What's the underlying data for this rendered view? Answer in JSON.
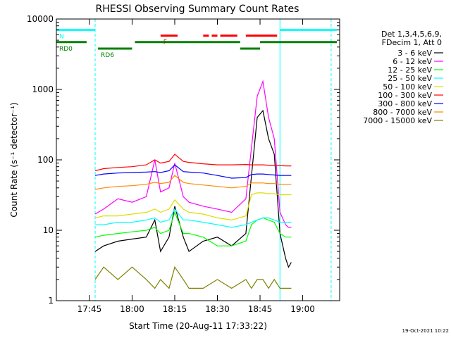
{
  "chart_data": {
    "type": "line",
    "title": "RHESSI Observing Summary Count Rates",
    "xlabel": "Start Time (20-Aug-11 17:33:22)",
    "ylabel": "Count Rate (s⁻¹ detector⁻¹)",
    "x_unit": "minutes",
    "xlim": [
      "17:33:22",
      "19:13:00"
    ],
    "ylim": [
      1,
      10000
    ],
    "yscale": "log",
    "grid": false,
    "legend_position": "right",
    "x_ticks": [
      "17:45",
      "18:00",
      "18:15",
      "18:30",
      "18:45",
      "19:00"
    ],
    "y_ticks": [
      "1",
      "10",
      "100",
      "1000",
      "10000"
    ],
    "legend_header": [
      "Det 1,3,4,5,6,9,",
      "FDecim 1, Att 0"
    ],
    "series": [
      {
        "name": "3 - 6 keV",
        "color": "#000000",
        "x": [
          "17:47",
          "17:50",
          "17:55",
          "18:00",
          "18:05",
          "18:08",
          "18:10",
          "18:13",
          "18:15",
          "18:18",
          "18:20",
          "18:25",
          "18:30",
          "18:35",
          "18:40",
          "18:42",
          "18:44",
          "18:46",
          "18:48",
          "18:50",
          "18:52",
          "18:54",
          "18:55",
          "18:56"
        ],
        "y": [
          5,
          6,
          7,
          7.5,
          8,
          14,
          5,
          8,
          22,
          8,
          5,
          7,
          8,
          6,
          9,
          60,
          400,
          500,
          200,
          120,
          9,
          4,
          3,
          3.5
        ]
      },
      {
        "name": "6 - 12 keV",
        "color": "#ff00ff",
        "x": [
          "17:47",
          "17:50",
          "17:55",
          "18:00",
          "18:05",
          "18:08",
          "18:10",
          "18:13",
          "18:15",
          "18:18",
          "18:20",
          "18:25",
          "18:30",
          "18:35",
          "18:40",
          "18:42",
          "18:44",
          "18:46",
          "18:48",
          "18:50",
          "18:52",
          "18:54",
          "18:55",
          "18:56"
        ],
        "y": [
          17,
          20,
          28,
          25,
          30,
          100,
          35,
          40,
          90,
          30,
          25,
          22,
          20,
          18,
          28,
          150,
          800,
          1300,
          400,
          200,
          18,
          12,
          11,
          11
        ]
      },
      {
        "name": "12 - 25 keV",
        "color": "#00ff00",
        "x": [
          "17:47",
          "17:50",
          "17:55",
          "18:00",
          "18:05",
          "18:08",
          "18:10",
          "18:13",
          "18:15",
          "18:18",
          "18:20",
          "18:25",
          "18:30",
          "18:35",
          "18:40",
          "18:42",
          "18:44",
          "18:46",
          "18:48",
          "18:50",
          "18:52",
          "18:54",
          "18:55",
          "18:56"
        ],
        "y": [
          8,
          8.5,
          9,
          9.5,
          10,
          11,
          9,
          10,
          18,
          9,
          9,
          8,
          6,
          6,
          7,
          12,
          14,
          15,
          14,
          13,
          9,
          8,
          8,
          8
        ]
      },
      {
        "name": "25 - 50 keV",
        "color": "#00ffff",
        "x": [
          "17:47",
          "17:50",
          "17:55",
          "18:00",
          "18:05",
          "18:08",
          "18:10",
          "18:13",
          "18:15",
          "18:18",
          "18:20",
          "18:25",
          "18:30",
          "18:35",
          "18:40",
          "18:42",
          "18:44",
          "18:46",
          "18:48",
          "18:50",
          "18:52",
          "18:54",
          "18:55",
          "18:56"
        ],
        "y": [
          12,
          12,
          13,
          13,
          14,
          15,
          13,
          14,
          20,
          14,
          14,
          13,
          12,
          11,
          12,
          13,
          14,
          15,
          15,
          14,
          13,
          13,
          13,
          13
        ]
      },
      {
        "name": "50 - 100 keV",
        "color": "#dddd00",
        "x": [
          "17:47",
          "17:50",
          "17:55",
          "18:00",
          "18:05",
          "18:08",
          "18:10",
          "18:13",
          "18:15",
          "18:18",
          "18:20",
          "18:25",
          "18:30",
          "18:35",
          "18:40",
          "18:42",
          "18:44",
          "18:46",
          "18:48",
          "18:50",
          "18:52",
          "18:54",
          "18:55",
          "18:56"
        ],
        "y": [
          15,
          16,
          16,
          17,
          18,
          20,
          18,
          20,
          27,
          20,
          18,
          17,
          15,
          14,
          16,
          32,
          34,
          34,
          33,
          33,
          32,
          32,
          32,
          32
        ]
      },
      {
        "name": "100 - 300 keV",
        "color": "#ff0000",
        "x": [
          "17:47",
          "17:50",
          "17:55",
          "18:00",
          "18:05",
          "18:08",
          "18:10",
          "18:13",
          "18:15",
          "18:18",
          "18:20",
          "18:25",
          "18:30",
          "18:35",
          "18:40",
          "18:42",
          "18:44",
          "18:46",
          "18:48",
          "18:50",
          "18:52",
          "18:54",
          "18:55",
          "18:56"
        ],
        "y": [
          70,
          75,
          78,
          80,
          85,
          100,
          90,
          95,
          120,
          95,
          92,
          88,
          85,
          85,
          86,
          85,
          85,
          85,
          84,
          84,
          83,
          82,
          82,
          82
        ]
      },
      {
        "name": "300 - 800 keV",
        "color": "#0000ff",
        "x": [
          "17:47",
          "17:50",
          "17:55",
          "18:00",
          "18:05",
          "18:08",
          "18:10",
          "18:13",
          "18:15",
          "18:18",
          "18:20",
          "18:25",
          "18:30",
          "18:35",
          "18:40",
          "18:42",
          "18:44",
          "18:46",
          "18:48",
          "18:50",
          "18:52",
          "18:54",
          "18:55",
          "18:56"
        ],
        "y": [
          60,
          63,
          65,
          66,
          67,
          68,
          66,
          70,
          85,
          68,
          67,
          65,
          60,
          55,
          56,
          62,
          63,
          63,
          62,
          61,
          60,
          60,
          60,
          60
        ]
      },
      {
        "name": "800 - 7000 keV",
        "color": "#ff8800",
        "x": [
          "17:47",
          "17:50",
          "17:55",
          "18:00",
          "18:05",
          "18:08",
          "18:10",
          "18:13",
          "18:15",
          "18:18",
          "18:20",
          "18:25",
          "18:30",
          "18:35",
          "18:40",
          "18:42",
          "18:44",
          "18:46",
          "18:48",
          "18:50",
          "18:52",
          "18:54",
          "18:55",
          "18:56"
        ],
        "y": [
          38,
          40,
          42,
          43,
          45,
          48,
          46,
          48,
          60,
          48,
          46,
          44,
          42,
          40,
          42,
          47,
          47,
          47,
          46,
          46,
          45,
          45,
          45,
          45
        ]
      },
      {
        "name": "7000 - 15000 keV",
        "color": "#808000",
        "x": [
          "17:47",
          "17:50",
          "17:55",
          "18:00",
          "18:05",
          "18:08",
          "18:10",
          "18:13",
          "18:15",
          "18:18",
          "18:20",
          "18:25",
          "18:30",
          "18:35",
          "18:40",
          "18:42",
          "18:44",
          "18:46",
          "18:48",
          "18:50",
          "18:52",
          "18:54",
          "18:55",
          "18:56"
        ],
        "y": [
          2,
          3,
          2,
          3,
          2,
          1.5,
          2,
          1.5,
          3,
          2,
          1.5,
          1.5,
          2,
          1.5,
          2,
          1.5,
          2,
          2,
          1.5,
          2,
          1.5,
          1.5,
          1.5,
          1.5
        ]
      }
    ],
    "flag_bars": [
      {
        "label": "N",
        "color": "#00ffff",
        "level": 7000,
        "segments": [
          [
            "17:33:22",
            "17:47"
          ],
          [
            "18:52",
            "19:12"
          ]
        ]
      },
      {
        "label": "F",
        "color": "#ff0000",
        "level": 5800,
        "segments": [
          [
            "18:10",
            "18:16"
          ],
          [
            "18:25",
            "18:27"
          ],
          [
            "18:28",
            "18:30"
          ],
          [
            "18:31",
            "18:37"
          ],
          [
            "18:40",
            "18:51"
          ]
        ]
      },
      {
        "label": "RD0",
        "color": "#008000",
        "level": 4700,
        "segments": [
          [
            "17:33:22",
            "17:44"
          ],
          [
            "18:01",
            "18:38"
          ],
          [
            "18:45",
            "19:12"
          ]
        ]
      },
      {
        "label": "RD6",
        "color": "#008000",
        "level": 3800,
        "segments": [
          [
            "17:48",
            "18:00"
          ],
          [
            "18:38",
            "18:45"
          ]
        ]
      }
    ],
    "vertical_lines": [
      {
        "time": "17:33:22",
        "color": "#00ffff",
        "style": "solid"
      },
      {
        "time": "17:47",
        "color": "#00ffff",
        "style": "dashed"
      },
      {
        "time": "18:52",
        "color": "#00ffff",
        "style": "solid"
      },
      {
        "time": "19:10",
        "color": "#00ffff",
        "style": "dashed"
      }
    ],
    "timestamp": "19-Oct-2021 10:22"
  }
}
